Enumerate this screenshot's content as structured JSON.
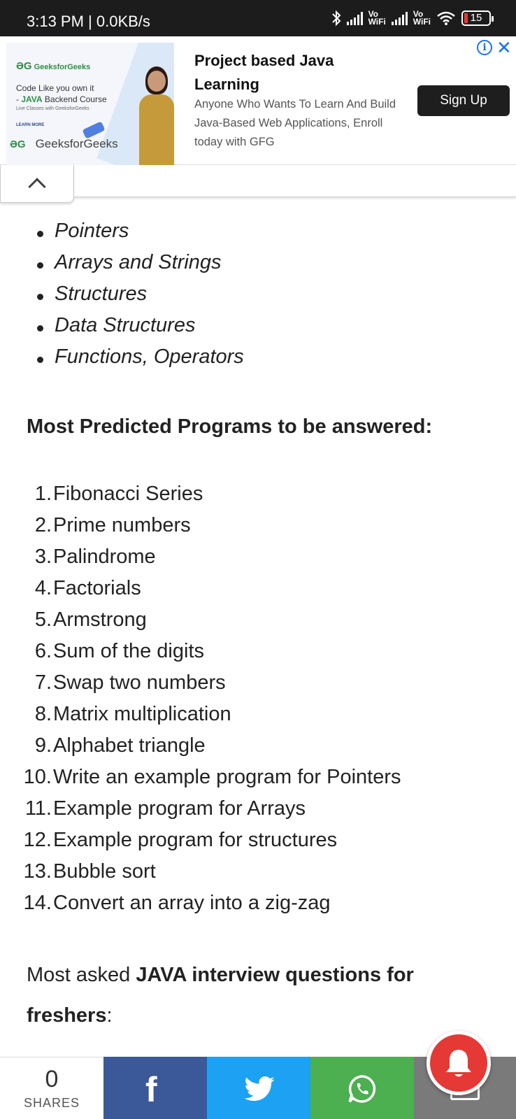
{
  "status_bar": {
    "time": "3:13 PM | 0.0KB/s",
    "sim1_label_top": "Vo",
    "sim1_label_bottom": "WiFi",
    "sim2_label_top": "Vo",
    "sim2_label_bottom": "WiFi",
    "battery": "15",
    "icons": [
      "bluetooth-icon",
      "signal-icon",
      "signal-icon",
      "wifi-icon",
      "battery-icon"
    ]
  },
  "ad": {
    "creative_brand": "GeeksforGeeks",
    "creative_line1": "Code Like you own it",
    "creative_line2_prefix": "- ",
    "creative_line2_highlight": "JAVA",
    "creative_line2_suffix": " Backend Course",
    "creative_line3": "Live Classes with GeeksforGeeks",
    "creative_cta": "LEARN MORE",
    "advertiser": "GeeksforGeeks",
    "title": "Project based Java Learning",
    "description": "Anyone Who Wants To Learn And Build Java-Based Web Applications, Enroll today with GFG",
    "cta": "Sign Up",
    "info_glyph": "i",
    "close_glyph": "✕",
    "accent_color": "#1a73e8",
    "brand_color": "#2f8d46"
  },
  "article": {
    "bullets": [
      "Pointers",
      "Arrays and Strings",
      "Structures",
      "Data Structures",
      "Functions, Operators"
    ],
    "heading": "Most Predicted Programs to be answered:",
    "programs": [
      {
        "n": "1.",
        "text": "Fibonacci Series"
      },
      {
        "n": "2.",
        "text": "Prime numbers"
      },
      {
        "n": "3.",
        "text": "Palindrome"
      },
      {
        "n": "4.",
        "text": "Factorials"
      },
      {
        "n": "5.",
        "text": "Armstrong"
      },
      {
        "n": "6.",
        "text": "Sum of the digits"
      },
      {
        "n": "7.",
        "text": "Swap two numbers"
      },
      {
        "n": "8.",
        "text": "Matrix multiplication"
      },
      {
        "n": "9.",
        "text": "Alphabet triangle"
      },
      {
        "n": "10.",
        "text": "Write an example program for Pointers"
      },
      {
        "n": "11.",
        "text": "Example program for Arrays"
      },
      {
        "n": "12.",
        "text": "Example program for structures"
      },
      {
        "n": "13.",
        "text": "Bubble sort"
      },
      {
        "n": "14.",
        "text": "Convert an array into a zig-zag"
      }
    ],
    "para_prefix": "Most asked ",
    "para_bold1": "JAVA interview questions for",
    "para_bold2": "freshers",
    "para_suffix": ":"
  },
  "share_bar": {
    "count": "0",
    "count_label": "SHARES",
    "colors": {
      "facebook": "#3b5998",
      "twitter": "#1da1f2",
      "whatsapp": "#4caf50",
      "email": "#7a7a7a"
    }
  },
  "notification": {
    "icon": "bell-icon",
    "color": "#e53935"
  }
}
